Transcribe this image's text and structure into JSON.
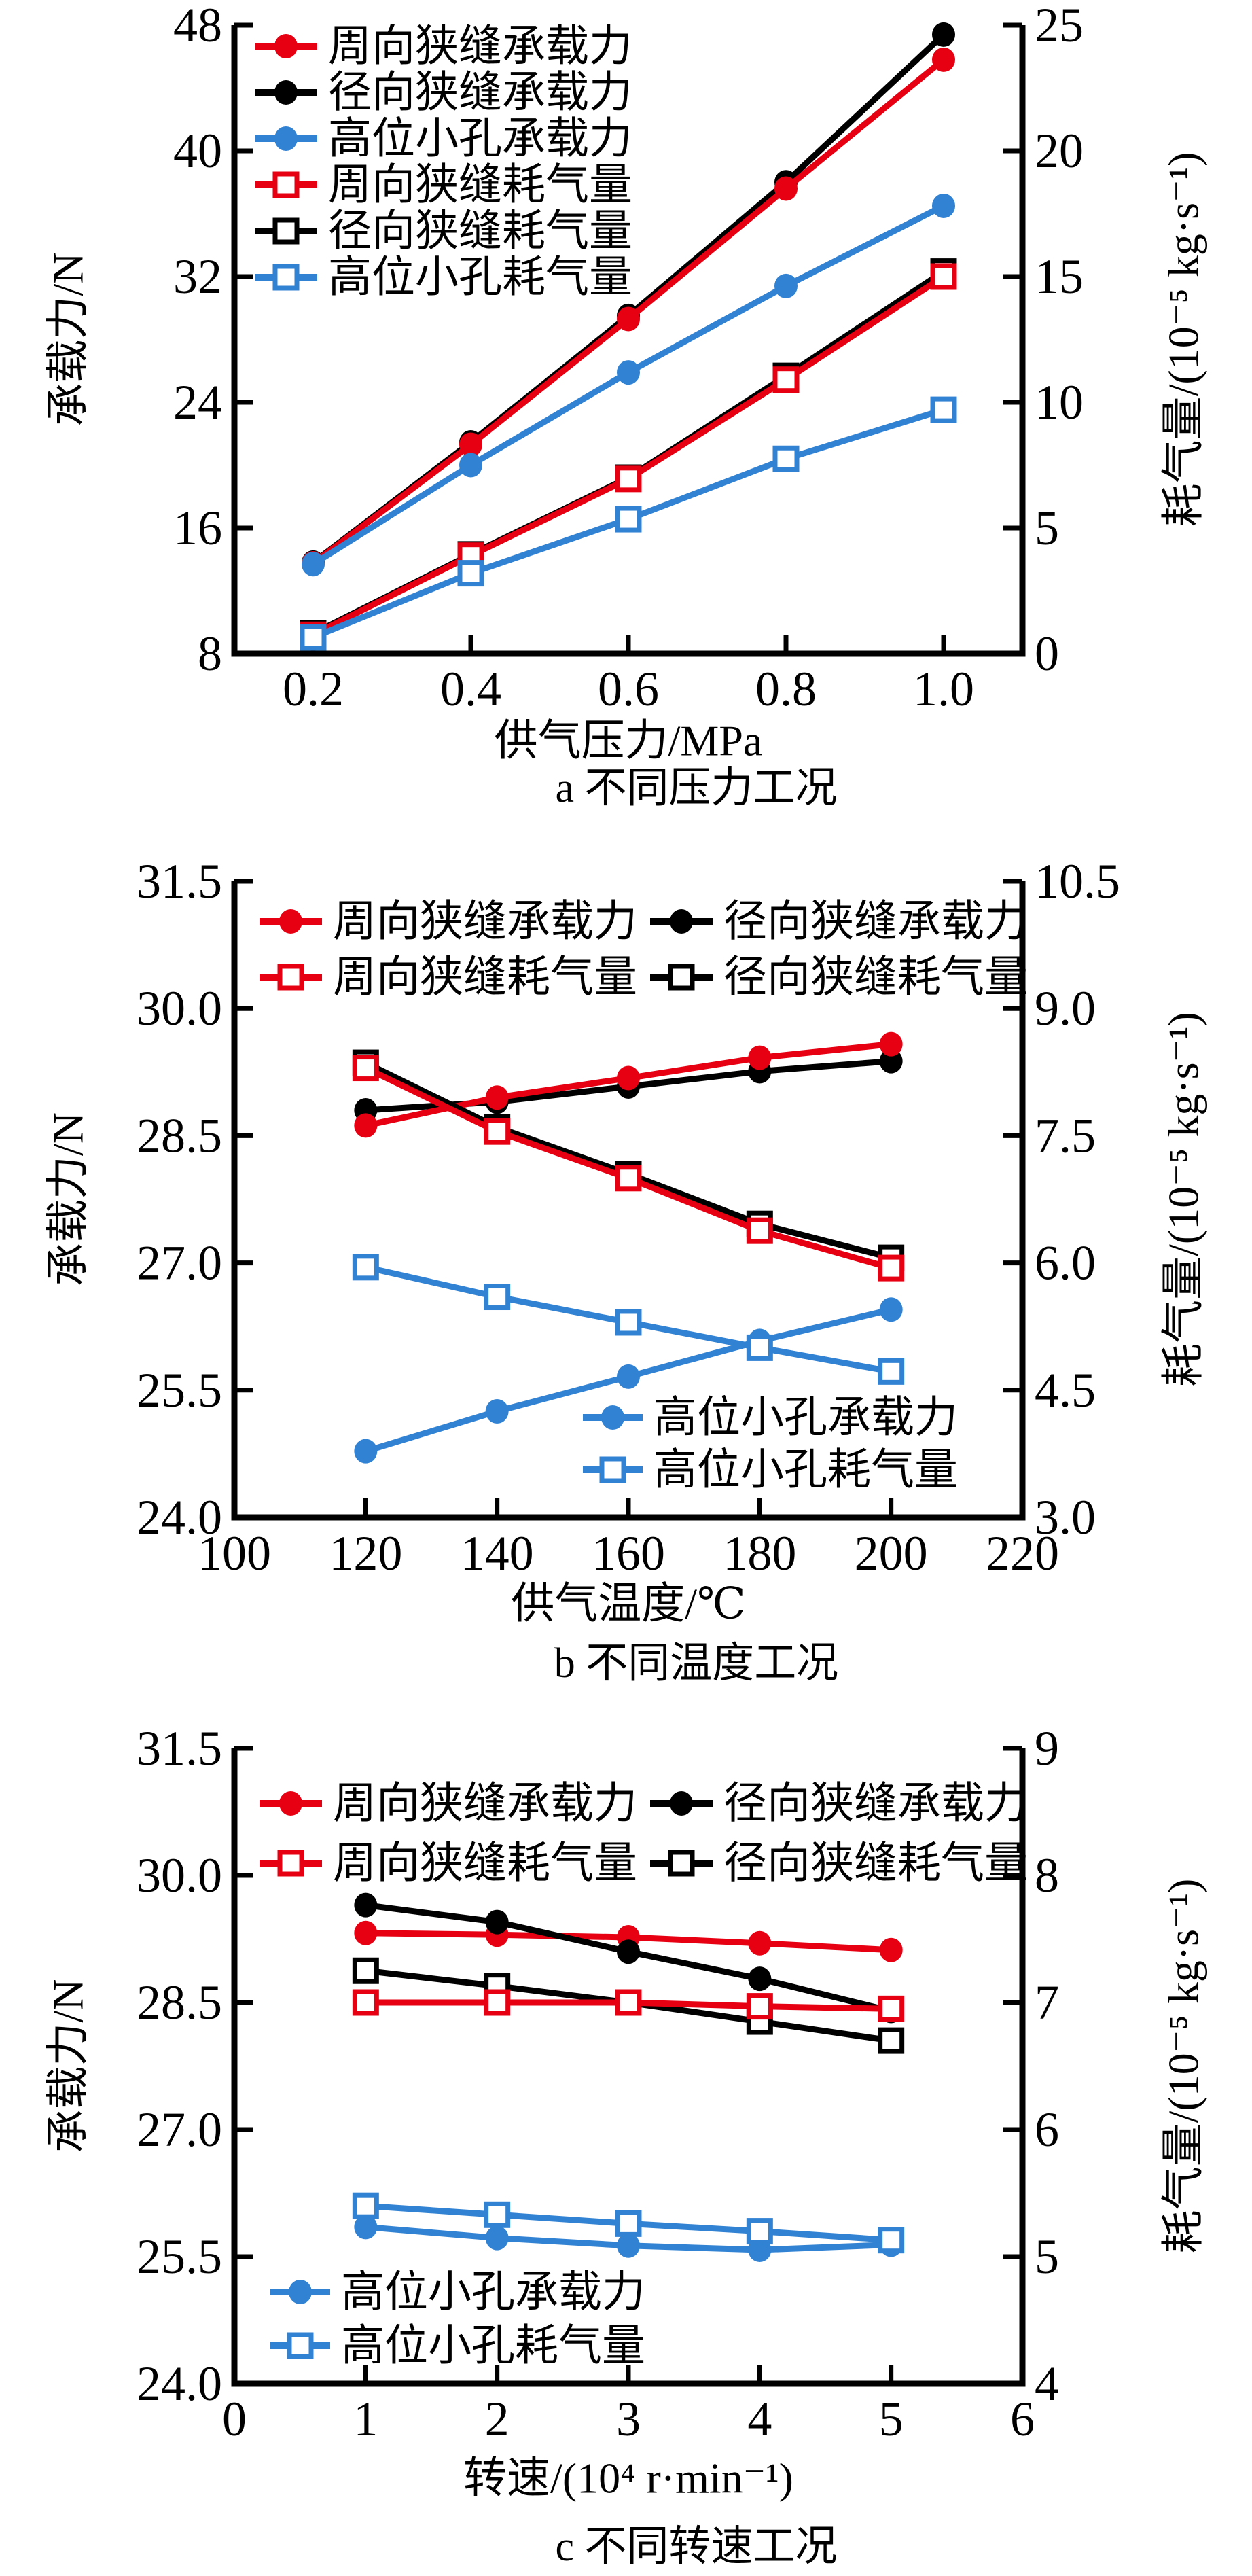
{
  "figure": {
    "description": "三组双坐标折线图：不同工况下承载力与耗气量对比",
    "background": "#ffffff"
  },
  "colors": {
    "red": "#e60012",
    "black": "#000000",
    "blue": "#3182d3"
  },
  "chart_data": [
    {
      "type": "line",
      "id": "a",
      "subtitle": "a 不同压力工况",
      "xlabel": "供气压力/MPa",
      "ylabel_left": "承载力/N",
      "ylabel_right": "耗气量/(10⁻⁵ kg·s⁻¹)",
      "grid": false,
      "legend_position": "top-left-inside",
      "x": [
        0.2,
        0.4,
        0.6,
        0.8,
        1.0
      ],
      "x_range": [
        0.1,
        1.1
      ],
      "x_ticks": [
        {
          "v": 0.2,
          "label": "0.2"
        },
        {
          "v": 0.4,
          "label": "0.4"
        },
        {
          "v": 0.6,
          "label": "0.6"
        },
        {
          "v": 0.8,
          "label": "0.8"
        },
        {
          "v": 1.0,
          "label": "1.0"
        }
      ],
      "yleft_range": [
        8,
        48
      ],
      "yleft_ticks": [
        {
          "v": 8,
          "label": "8"
        },
        {
          "v": 16,
          "label": "16"
        },
        {
          "v": 24,
          "label": "24"
        },
        {
          "v": 32,
          "label": "32"
        },
        {
          "v": 40,
          "label": "40"
        },
        {
          "v": 48,
          "label": "48"
        }
      ],
      "yright_range": [
        0,
        25
      ],
      "yright_ticks": [
        {
          "v": 0,
          "label": "0"
        },
        {
          "v": 5,
          "label": "5"
        },
        {
          "v": 10,
          "label": "10"
        },
        {
          "v": 15,
          "label": "15"
        },
        {
          "v": 20,
          "label": "20"
        },
        {
          "v": 25,
          "label": "25"
        }
      ],
      "series": [
        {
          "key": "circ-slit-load",
          "label": "周向狭缝承载力",
          "color": "red",
          "marker": "circle",
          "axis": "left",
          "legend": "main",
          "values": [
            13.75,
            21.3,
            29.3,
            37.6,
            45.8
          ]
        },
        {
          "key": "radial-slit-load",
          "label": "径向狭缝承载力",
          "color": "black",
          "marker": "circle",
          "axis": "left",
          "legend": "main",
          "values": [
            13.8,
            21.45,
            29.5,
            38.0,
            47.4
          ]
        },
        {
          "key": "orifice-load",
          "label": "高位小孔承载力",
          "color": "blue",
          "marker": "circle",
          "axis": "left",
          "legend": "main",
          "values": [
            13.7,
            20.0,
            25.9,
            31.4,
            36.5
          ]
        },
        {
          "key": "circ-slit-airflow",
          "label": "周向狭缝耗气量",
          "color": "red",
          "marker": "square",
          "axis": "right",
          "legend": "main",
          "values": [
            0.75,
            3.9,
            6.95,
            10.9,
            15.0
          ]
        },
        {
          "key": "radial-slit-airflow",
          "label": "径向狭缝耗气量",
          "color": "black",
          "marker": "square",
          "axis": "right",
          "legend": "main",
          "values": [
            0.8,
            3.95,
            7.0,
            11.05,
            15.2
          ]
        },
        {
          "key": "orifice-airflow",
          "label": "高位小孔耗气量",
          "color": "blue",
          "marker": "square",
          "axis": "right",
          "legend": "main",
          "values": [
            0.65,
            3.2,
            5.35,
            7.75,
            9.7
          ]
        }
      ]
    },
    {
      "type": "line",
      "id": "b",
      "subtitle": "b 不同温度工况",
      "xlabel": "供气温度/℃",
      "ylabel_left": "承载力/N",
      "ylabel_right": "耗气量/(10⁻⁵ kg·s⁻¹)",
      "grid": false,
      "legend_position": "top-inside-2col",
      "x": [
        120,
        140,
        160,
        180,
        200
      ],
      "x_range": [
        100,
        220
      ],
      "x_ticks": [
        {
          "v": 100,
          "label": "100"
        },
        {
          "v": 120,
          "label": "120"
        },
        {
          "v": 140,
          "label": "140"
        },
        {
          "v": 160,
          "label": "160"
        },
        {
          "v": 180,
          "label": "180"
        },
        {
          "v": 200,
          "label": "200"
        },
        {
          "v": 220,
          "label": "220"
        }
      ],
      "yleft_range": [
        24,
        31.5
      ],
      "yleft_ticks": [
        {
          "v": 24.0,
          "label": "24.0"
        },
        {
          "v": 25.5,
          "label": "25.5"
        },
        {
          "v": 27.0,
          "label": "27.0"
        },
        {
          "v": 28.5,
          "label": "28.5"
        },
        {
          "v": 30.0,
          "label": "30.0"
        },
        {
          "v": 31.5,
          "label": "31.5"
        }
      ],
      "yright_range": [
        3,
        10.5
      ],
      "yright_ticks": [
        {
          "v": 3.0,
          "label": "3.0"
        },
        {
          "v": 4.5,
          "label": "4.5"
        },
        {
          "v": 6.0,
          "label": "6.0"
        },
        {
          "v": 7.5,
          "label": "7.5"
        },
        {
          "v": 9.0,
          "label": "9.0"
        },
        {
          "v": 10.5,
          "label": "10.5"
        }
      ],
      "series": [
        {
          "key": "circ-slit-load",
          "label": "周向狭缝承载力",
          "color": "red",
          "marker": "circle",
          "axis": "left",
          "legend": "main",
          "values": [
            28.62,
            28.95,
            29.18,
            29.42,
            29.58
          ]
        },
        {
          "key": "radial-slit-load",
          "label": "径向狭缝承载力",
          "color": "black",
          "marker": "circle",
          "axis": "left",
          "legend": "main",
          "values": [
            28.8,
            28.9,
            29.08,
            29.26,
            29.38
          ]
        },
        {
          "key": "orifice-load",
          "label": "高位小孔承载力",
          "color": "blue",
          "marker": "circle",
          "axis": "left",
          "legend": "inner",
          "values": [
            24.78,
            25.25,
            25.66,
            26.08,
            26.45
          ]
        },
        {
          "key": "circ-slit-airflow",
          "label": "周向狭缝耗气量",
          "color": "red",
          "marker": "square",
          "axis": "right",
          "legend": "main",
          "values": [
            8.3,
            7.55,
            7.0,
            6.38,
            5.94
          ]
        },
        {
          "key": "radial-slit-airflow",
          "label": "径向狭缝耗气量",
          "color": "black",
          "marker": "square",
          "axis": "right",
          "legend": "main",
          "values": [
            8.36,
            7.6,
            7.05,
            6.46,
            6.06
          ]
        },
        {
          "key": "orifice-airflow",
          "label": "高位小孔耗气量",
          "color": "blue",
          "marker": "square",
          "axis": "right",
          "legend": "inner",
          "values": [
            5.95,
            5.6,
            5.3,
            5.0,
            4.72
          ]
        }
      ]
    },
    {
      "type": "line",
      "id": "c",
      "subtitle": "c 不同转速工况",
      "xlabel": "转速/(10⁴ r·min⁻¹)",
      "ylabel_left": "承载力/N",
      "ylabel_right": "耗气量/(10⁻⁵ kg·s⁻¹)",
      "grid": false,
      "legend_position": "top-inside-2col",
      "x": [
        1,
        2,
        3,
        4,
        5
      ],
      "x_range": [
        0,
        6
      ],
      "x_ticks": [
        {
          "v": 0,
          "label": "0"
        },
        {
          "v": 1,
          "label": "1"
        },
        {
          "v": 2,
          "label": "2"
        },
        {
          "v": 3,
          "label": "3"
        },
        {
          "v": 4,
          "label": "4"
        },
        {
          "v": 5,
          "label": "5"
        },
        {
          "v": 6,
          "label": "6"
        }
      ],
      "yleft_range": [
        24,
        31.5
      ],
      "yleft_ticks": [
        {
          "v": 24.0,
          "label": "24.0"
        },
        {
          "v": 25.5,
          "label": "25.5"
        },
        {
          "v": 27.0,
          "label": "27.0"
        },
        {
          "v": 28.5,
          "label": "28.5"
        },
        {
          "v": 30.0,
          "label": "30.0"
        },
        {
          "v": 31.5,
          "label": "31.5"
        }
      ],
      "yright_range": [
        4,
        9
      ],
      "yright_ticks": [
        {
          "v": 4,
          "label": "4"
        },
        {
          "v": 5,
          "label": "5"
        },
        {
          "v": 6,
          "label": "6"
        },
        {
          "v": 7,
          "label": "7"
        },
        {
          "v": 8,
          "label": "8"
        },
        {
          "v": 9,
          "label": "9"
        }
      ],
      "series": [
        {
          "key": "circ-slit-load",
          "label": "周向狭缝承载力",
          "color": "red",
          "marker": "circle",
          "axis": "left",
          "legend": "main",
          "values": [
            29.32,
            29.3,
            29.27,
            29.2,
            29.12
          ]
        },
        {
          "key": "radial-slit-load",
          "label": "径向狭缝承载力",
          "color": "black",
          "marker": "circle",
          "axis": "left",
          "legend": "main",
          "values": [
            29.65,
            29.45,
            29.1,
            28.78,
            28.4
          ]
        },
        {
          "key": "orifice-load",
          "label": "高位小孔承载力",
          "color": "blue",
          "marker": "circle",
          "axis": "left",
          "legend": "inner",
          "values": [
            25.85,
            25.72,
            25.63,
            25.58,
            25.64
          ]
        },
        {
          "key": "circ-slit-airflow",
          "label": "周向狭缝耗气量",
          "color": "red",
          "marker": "square",
          "axis": "right",
          "legend": "main",
          "values": [
            7.0,
            7.0,
            7.0,
            6.97,
            6.95
          ]
        },
        {
          "key": "radial-slit-airflow",
          "label": "径向狭缝耗气量",
          "color": "black",
          "marker": "square",
          "axis": "right",
          "legend": "main",
          "values": [
            7.25,
            7.13,
            7.0,
            6.85,
            6.7
          ]
        },
        {
          "key": "orifice-airflow",
          "label": "高位小孔耗气量",
          "color": "blue",
          "marker": "square",
          "axis": "right",
          "legend": "inner",
          "values": [
            5.4,
            5.33,
            5.26,
            5.2,
            5.13
          ]
        }
      ]
    }
  ]
}
